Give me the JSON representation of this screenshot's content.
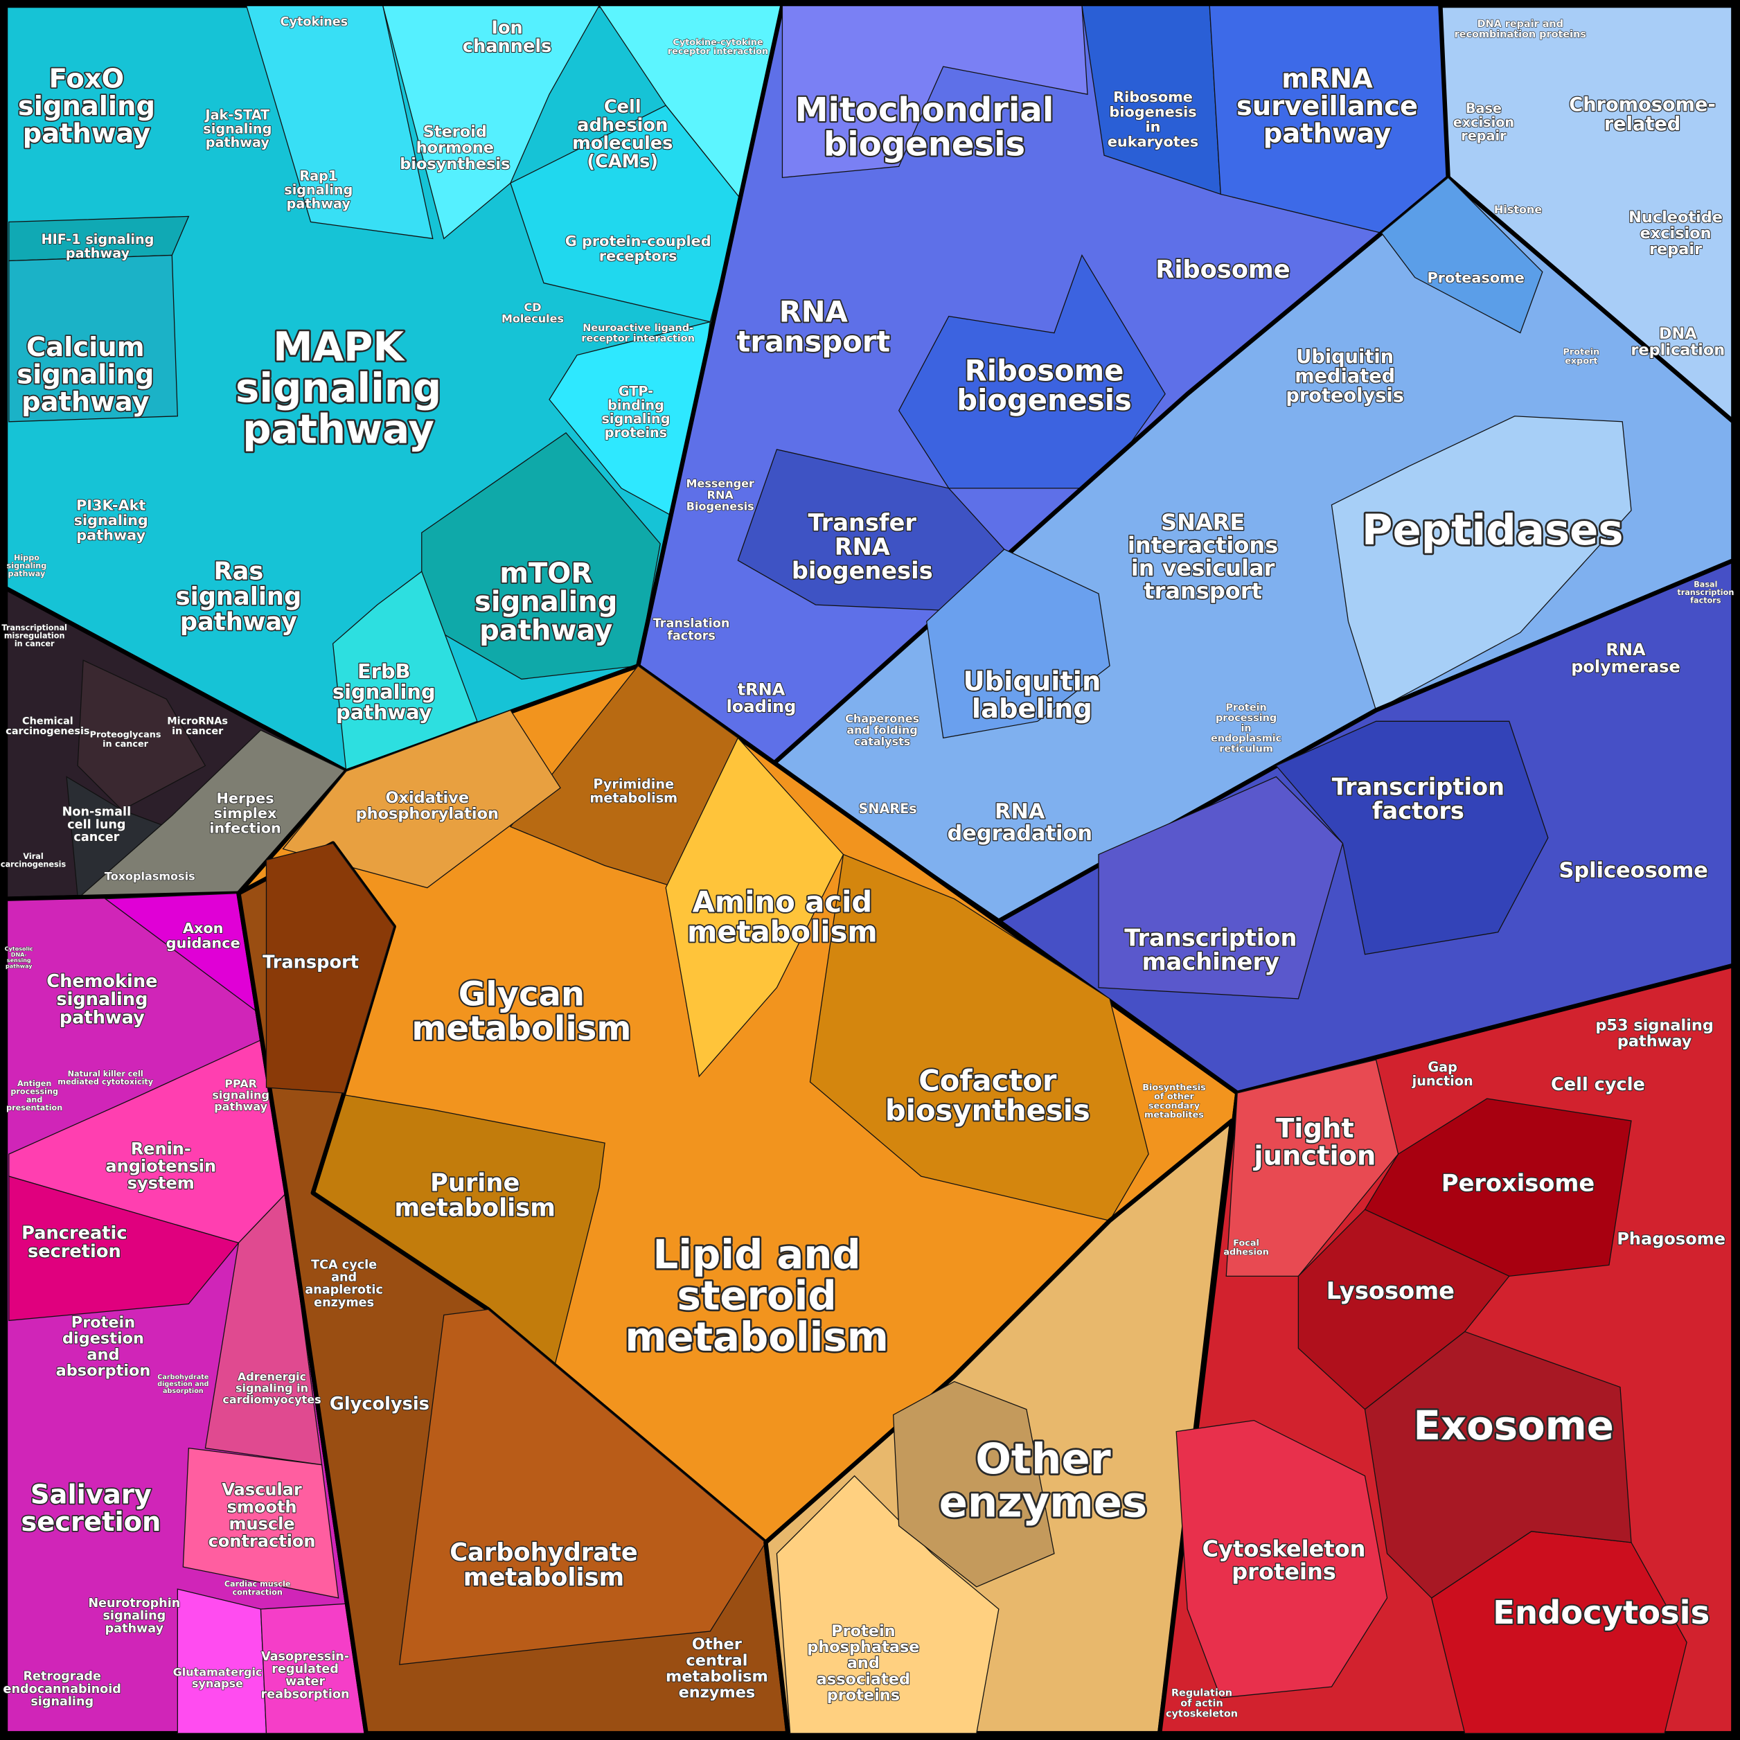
{
  "labels": [
    {
      "lines": [
        "FoxO",
        "signaling",
        "pathway"
      ]
    },
    {
      "lines": [
        "Cytokines"
      ]
    },
    {
      "lines": [
        "Ion",
        "channels"
      ]
    },
    {
      "lines": [
        "Cytokine-cytokine",
        "receptor interaction"
      ]
    },
    {
      "lines": [
        "Jak-STAT",
        "signaling",
        "pathway"
      ]
    },
    {
      "lines": [
        "Steroid",
        "hormone",
        "biosynthesis"
      ]
    },
    {
      "lines": [
        "Cell",
        "adhesion",
        "molecules",
        "(CAMs)"
      ]
    },
    {
      "lines": [
        "Rap1",
        "signaling",
        "pathway"
      ]
    },
    {
      "lines": [
        "HIF-1 signaling",
        "pathway"
      ]
    },
    {
      "lines": [
        "G protein-coupled",
        "receptors"
      ]
    },
    {
      "lines": [
        "CD",
        "Molecules"
      ]
    },
    {
      "lines": [
        "Neuroactive ligand-",
        "receptor interaction"
      ]
    },
    {
      "lines": [
        "Calcium",
        "signaling",
        "pathway"
      ]
    },
    {
      "lines": [
        "MAPK",
        "signaling",
        "pathway"
      ]
    },
    {
      "lines": [
        "GTP-",
        "binding",
        "signaling",
        "proteins"
      ]
    },
    {
      "lines": [
        "PI3K-Akt",
        "signaling",
        "pathway"
      ]
    },
    {
      "lines": [
        "Hippo",
        "signaling",
        "pathway"
      ]
    },
    {
      "lines": [
        "Ras",
        "signaling",
        "pathway"
      ]
    },
    {
      "lines": [
        "mTOR",
        "signaling",
        "pathway"
      ]
    },
    {
      "lines": [
        "ErbB",
        "signaling",
        "pathway"
      ]
    },
    {
      "lines": [
        "Transcriptional",
        "misregulation",
        "in cancer"
      ]
    },
    {
      "lines": [
        "Chemical",
        "carcinogenesis"
      ]
    },
    {
      "lines": [
        "Proteoglycans",
        "in cancer"
      ]
    },
    {
      "lines": [
        "MicroRNAs",
        "in cancer"
      ]
    },
    {
      "lines": [
        "Non-small",
        "cell lung",
        "cancer"
      ]
    },
    {
      "lines": [
        "Herpes",
        "simplex",
        "infection"
      ]
    },
    {
      "lines": [
        "Viral",
        "carcinogenesis"
      ]
    },
    {
      "lines": [
        "Toxoplasmosis"
      ]
    },
    {
      "lines": [
        "Mitochondrial",
        "biogenesis"
      ]
    },
    {
      "lines": [
        "Ribosome",
        "biogenesis",
        "in",
        "eukaryotes"
      ]
    },
    {
      "lines": [
        "mRNA",
        "surveillance",
        "pathway"
      ]
    },
    {
      "lines": [
        "DNA repair and",
        "recombination proteins"
      ]
    },
    {
      "lines": [
        "Base",
        "excision",
        "repair"
      ]
    },
    {
      "lines": [
        "Chromosome-",
        "related"
      ]
    },
    {
      "lines": [
        "Histone"
      ]
    },
    {
      "lines": [
        "Nucleotide",
        "excision",
        "repair"
      ]
    },
    {
      "lines": [
        "Ribosome"
      ]
    },
    {
      "lines": [
        "Proteasome"
      ]
    },
    {
      "lines": [
        "RNA",
        "transport"
      ]
    },
    {
      "lines": [
        "Ubiquitin",
        "mediated",
        "proteolysis"
      ]
    },
    {
      "lines": [
        "DNA",
        "replication"
      ]
    },
    {
      "lines": [
        "Protein",
        "export"
      ]
    },
    {
      "lines": [
        "Ribosome",
        "biogenesis"
      ]
    },
    {
      "lines": [
        "Messenger",
        "RNA",
        "Biogenesis"
      ]
    },
    {
      "lines": [
        "Transfer",
        "RNA",
        "biogenesis"
      ]
    },
    {
      "lines": [
        "SNARE",
        "interactions",
        "in vesicular",
        "transport"
      ]
    },
    {
      "lines": [
        "Peptidases"
      ]
    },
    {
      "lines": [
        "Basal",
        "transcription",
        "factors"
      ]
    },
    {
      "lines": [
        "Translation",
        "factors"
      ]
    },
    {
      "lines": [
        "RNA",
        "polymerase"
      ]
    },
    {
      "lines": [
        "tRNA",
        "loading"
      ]
    },
    {
      "lines": [
        "Ubiquitin",
        "labeling"
      ]
    },
    {
      "lines": [
        "Chaperones",
        "and folding",
        "catalysts"
      ]
    },
    {
      "lines": [
        "Protein",
        "processing",
        "in",
        "endoplasmic",
        "reticulum"
      ]
    },
    {
      "lines": [
        "Transcription",
        "factors"
      ]
    },
    {
      "lines": [
        "SNAREs"
      ]
    },
    {
      "lines": [
        "RNA",
        "degradation"
      ]
    },
    {
      "lines": [
        "Spliceosome"
      ]
    },
    {
      "lines": [
        "Transcription",
        "machinery"
      ]
    },
    {
      "lines": [
        "Oxidative",
        "phosphorylation"
      ]
    },
    {
      "lines": [
        "Pyrimidine",
        "metabolism"
      ]
    },
    {
      "lines": [
        "Amino acid",
        "metabolism"
      ]
    },
    {
      "lines": [
        "Transport"
      ]
    },
    {
      "lines": [
        "Glycan",
        "metabolism"
      ]
    },
    {
      "lines": [
        "Cofactor",
        "biosynthesis"
      ]
    },
    {
      "lines": [
        "Biosynthesis",
        "of other",
        "secondary",
        "metabolites"
      ]
    },
    {
      "lines": [
        "Purine",
        "metabolism"
      ]
    },
    {
      "lines": [
        "Lipid and",
        "steroid",
        "metabolism"
      ]
    },
    {
      "lines": [
        "TCA cycle",
        "and",
        "anaplerotic",
        "enzymes"
      ]
    },
    {
      "lines": [
        "Glycolysis"
      ]
    },
    {
      "lines": [
        "Other",
        "enzymes"
      ]
    },
    {
      "lines": [
        "Carbohydrate",
        "metabolism"
      ]
    },
    {
      "lines": [
        "Protein",
        "phosphatase",
        "and",
        "associated",
        "proteins"
      ]
    },
    {
      "lines": [
        "Other",
        "central",
        "metabolism",
        "enzymes"
      ]
    },
    {
      "lines": [
        "Axon",
        "guidance"
      ]
    },
    {
      "lines": [
        "Cytosolic",
        "DNA-",
        "sensing",
        "pathway"
      ]
    },
    {
      "lines": [
        "Chemokine",
        "signaling",
        "pathway"
      ]
    },
    {
      "lines": [
        "Natural killer cell",
        "mediated cytotoxicity"
      ]
    },
    {
      "lines": [
        "Antigen",
        "processing",
        "and",
        "presentation"
      ]
    },
    {
      "lines": [
        "PPAR",
        "signaling",
        "pathway"
      ]
    },
    {
      "lines": [
        "Renin-",
        "angiotensin",
        "system"
      ]
    },
    {
      "lines": [
        "Pancreatic",
        "secretion"
      ]
    },
    {
      "lines": [
        "Protein",
        "digestion",
        "and",
        "absorption"
      ]
    },
    {
      "lines": [
        "Adrenergic",
        "signaling in",
        "cardiomyocytes"
      ]
    },
    {
      "lines": [
        "Carbohydrate",
        "digestion and",
        "absorption"
      ]
    },
    {
      "lines": [
        "Salivary",
        "secretion"
      ]
    },
    {
      "lines": [
        "Vascular",
        "smooth",
        "muscle",
        "contraction"
      ]
    },
    {
      "lines": [
        "Cardiac muscle",
        "contraction"
      ]
    },
    {
      "lines": [
        "Neurotrophin",
        "signaling",
        "pathway"
      ]
    },
    {
      "lines": [
        "Retrograde",
        "endocannabinoid",
        "signaling"
      ]
    },
    {
      "lines": [
        "Glutamatergic",
        "synapse"
      ]
    },
    {
      "lines": [
        "Vasopressin-",
        "regulated",
        "water",
        "reabsorption"
      ]
    },
    {
      "lines": [
        "Tight",
        "junction"
      ]
    },
    {
      "lines": [
        "Gap",
        "junction"
      ]
    },
    {
      "lines": [
        "p53 signaling",
        "pathway"
      ]
    },
    {
      "lines": [
        "Cell cycle"
      ]
    },
    {
      "lines": [
        "Peroxisome"
      ]
    },
    {
      "lines": [
        "Focal",
        "adhesion"
      ]
    },
    {
      "lines": [
        "Phagosome"
      ]
    },
    {
      "lines": [
        "Lysosome"
      ]
    },
    {
      "lines": [
        "Exosome"
      ]
    },
    {
      "lines": [
        "Cytoskeleton",
        "proteins"
      ]
    },
    {
      "lines": [
        "Endocytosis"
      ]
    },
    {
      "lines": [
        "Regulation",
        "of actin",
        "cytoskeleton"
      ]
    }
  ]
}
